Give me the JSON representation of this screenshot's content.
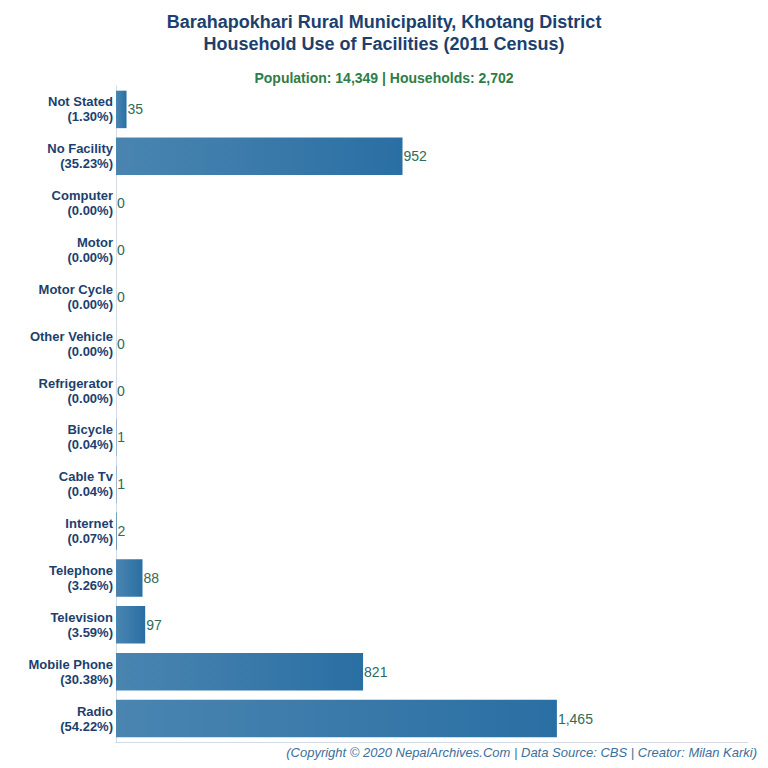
{
  "chart_data": {
    "type": "bar",
    "orientation": "horizontal",
    "title": "Barahapokhari Rural Municipality, Khotang District\nHousehold Use of Facilities (2011 Census)",
    "subtitle": "Population: 14,349 | Households: 2,702",
    "footer": "(Copyright © 2020 NepalArchives.Com | Data Source: CBS | Creator: Milan Karki)",
    "categories": [
      "Not Stated\n(1.30%)",
      "No Facility\n(35.23%)",
      "Computer\n(0.00%)",
      "Motor\n(0.00%)",
      "Motor Cycle\n(0.00%)",
      "Other Vehicle\n(0.00%)",
      "Refrigerator\n(0.00%)",
      "Bicycle\n(0.04%)",
      "Cable Tv\n(0.04%)",
      "Internet\n(0.07%)",
      "Telephone\n(3.26%)",
      "Television\n(3.59%)",
      "Mobile Phone\n(30.38%)",
      "Radio\n(54.22%)"
    ],
    "values": [
      35,
      952,
      0,
      0,
      0,
      0,
      0,
      1,
      1,
      2,
      88,
      97,
      821,
      1465
    ],
    "value_labels": [
      "35",
      "952",
      "0",
      "0",
      "0",
      "0",
      "0",
      "1",
      "1",
      "2",
      "88",
      "97",
      "821",
      "1,465"
    ],
    "color": "#2a6fa3",
    "xlim": [
      0,
      2100
    ],
    "grid": false,
    "data_labels": true,
    "tick_labels": "y"
  }
}
